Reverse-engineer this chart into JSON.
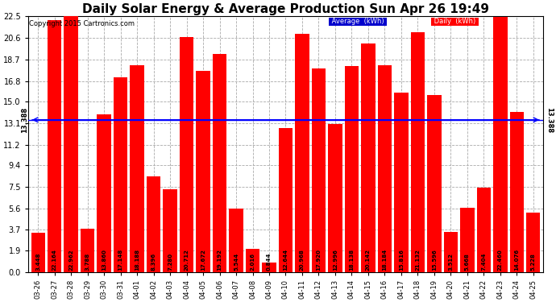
{
  "title": "Daily Solar Energy & Average Production Sun Apr 26 19:49",
  "copyright": "Copyright 2015 Cartronics.com",
  "categories": [
    "03-26",
    "03-27",
    "03-28",
    "03-29",
    "03-30",
    "03-31",
    "04-01",
    "04-02",
    "04-03",
    "04-04",
    "04-05",
    "04-06",
    "04-07",
    "04-08",
    "04-09",
    "04-10",
    "04-11",
    "04-12",
    "04-13",
    "04-14",
    "04-15",
    "04-16",
    "04-17",
    "04-18",
    "04-19",
    "04-20",
    "04-21",
    "04-22",
    "04-23",
    "04-24",
    "04-25"
  ],
  "values": [
    3.448,
    22.164,
    22.962,
    3.788,
    13.86,
    17.148,
    18.188,
    8.396,
    7.28,
    20.712,
    17.672,
    19.192,
    5.544,
    2.016,
    0.844,
    12.644,
    20.968,
    17.92,
    12.996,
    18.138,
    20.142,
    18.184,
    15.816,
    21.132,
    15.596,
    3.512,
    5.668,
    7.404,
    22.46,
    14.076,
    5.228
  ],
  "bar_labels": [
    "3.448",
    "22.164",
    "22.962",
    "3.788",
    "13.860",
    "17.148",
    "18.188",
    "8.396",
    "7.280",
    "20.712",
    "17.672",
    "19.192",
    "5.544",
    "2.016",
    "0.844",
    "12.644",
    "20.968",
    "17.920",
    "12.996",
    "18.138",
    "20.142",
    "18.184",
    "15.816",
    "21.132",
    "15.596",
    "3.512",
    "5.668",
    "7.404",
    "22.460",
    "14.076",
    "5.228"
  ],
  "average_line": 13.388,
  "ylim": [
    0,
    22.5
  ],
  "yticks": [
    0.0,
    1.9,
    3.7,
    5.6,
    7.5,
    9.4,
    11.2,
    13.1,
    15.0,
    16.8,
    18.7,
    20.6,
    22.5
  ],
  "bar_color": "#ff0000",
  "avg_line_color": "#0000ff",
  "bg_color": "#ffffff",
  "grid_color": "#aaaaaa",
  "legend_bg_color": "#000080",
  "legend_daily_color": "#ff0000",
  "title_fontsize": 11,
  "bar_value_fontsize": 5,
  "copyright_fontsize": 6,
  "xtick_fontsize": 6,
  "ytick_fontsize": 7
}
